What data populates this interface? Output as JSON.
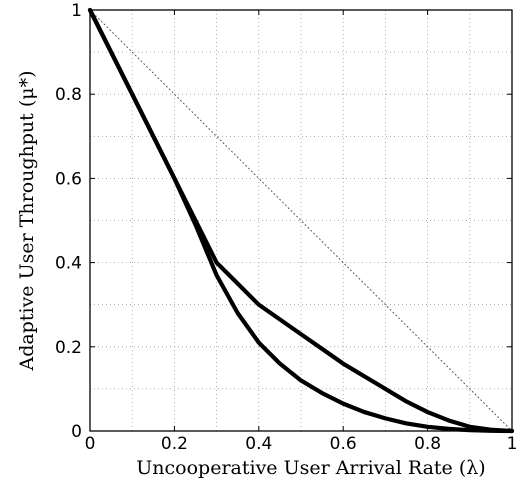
{
  "chart_data": {
    "type": "line",
    "title": "",
    "xlabel": "Uncooperative User Arrival Rate (λ)",
    "ylabel": "Adaptive User Throughput (μ*)",
    "xlim": [
      0,
      1
    ],
    "ylim": [
      0,
      1
    ],
    "xticks": [
      0,
      0.2,
      0.4,
      0.6,
      0.8,
      1
    ],
    "yticks": [
      0,
      0.2,
      0.4,
      0.6,
      0.8,
      1
    ],
    "xtick_labels": [
      "0",
      "0.2",
      "0.4",
      "0.6",
      "0.8",
      "1"
    ],
    "ytick_labels": [
      "0",
      "0.2",
      "0.4",
      "0.6",
      "0.8",
      "1"
    ],
    "grid": true,
    "minor_grid_step": 0.1,
    "legend": "none",
    "series": [
      {
        "style": "dotted",
        "color": "#555555",
        "x": [
          0,
          1
        ],
        "y": [
          1,
          0
        ]
      },
      {
        "style": "solid-thick",
        "color": "#000000",
        "x": [
          0,
          0.05,
          0.1,
          0.15,
          0.2,
          0.25,
          0.3,
          0.35,
          0.4,
          0.45,
          0.5,
          0.55,
          0.6,
          0.65,
          0.7,
          0.75,
          0.8,
          0.85,
          0.9,
          0.95,
          1.0
        ],
        "y": [
          1,
          0.9,
          0.8,
          0.7,
          0.6,
          0.5,
          0.4,
          0.35,
          0.3,
          0.265,
          0.23,
          0.195,
          0.16,
          0.13,
          0.1,
          0.07,
          0.045,
          0.025,
          0.01,
          0.003,
          0
        ]
      },
      {
        "style": "solid-thick",
        "color": "#000000",
        "x": [
          0,
          0.05,
          0.1,
          0.15,
          0.2,
          0.25,
          0.3,
          0.35,
          0.4,
          0.45,
          0.5,
          0.55,
          0.6,
          0.65,
          0.7,
          0.75,
          0.8,
          0.85,
          0.9,
          0.95,
          1.0
        ],
        "y": [
          1,
          0.9,
          0.8,
          0.7,
          0.6,
          0.49,
          0.37,
          0.28,
          0.21,
          0.16,
          0.12,
          0.09,
          0.065,
          0.045,
          0.03,
          0.018,
          0.01,
          0.005,
          0.002,
          0.0005,
          0
        ]
      }
    ]
  }
}
